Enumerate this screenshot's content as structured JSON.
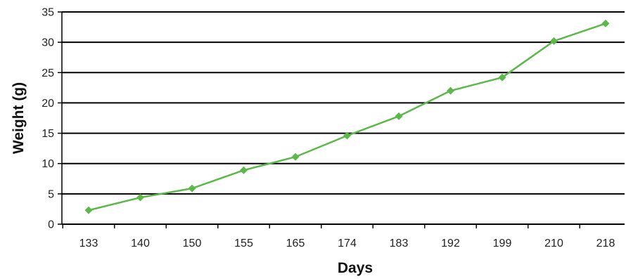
{
  "chart_data": {
    "type": "line",
    "title": "",
    "xlabel": "Days",
    "ylabel": "Weight (g)",
    "categories": [
      "133",
      "140",
      "150",
      "155",
      "165",
      "174",
      "183",
      "192",
      "199",
      "210",
      "218"
    ],
    "series": [
      {
        "values": [
          2.3,
          4.4,
          5.9,
          8.9,
          11.1,
          14.6,
          17.8,
          22.0,
          24.2,
          30.2,
          33.1
        ],
        "color": "#5cb84a"
      }
    ],
    "ylim": [
      0,
      35
    ],
    "yticks": [
      0,
      5,
      10,
      15,
      20,
      25,
      30,
      35
    ],
    "grid": true,
    "legend": "none",
    "marker": "diamond"
  }
}
